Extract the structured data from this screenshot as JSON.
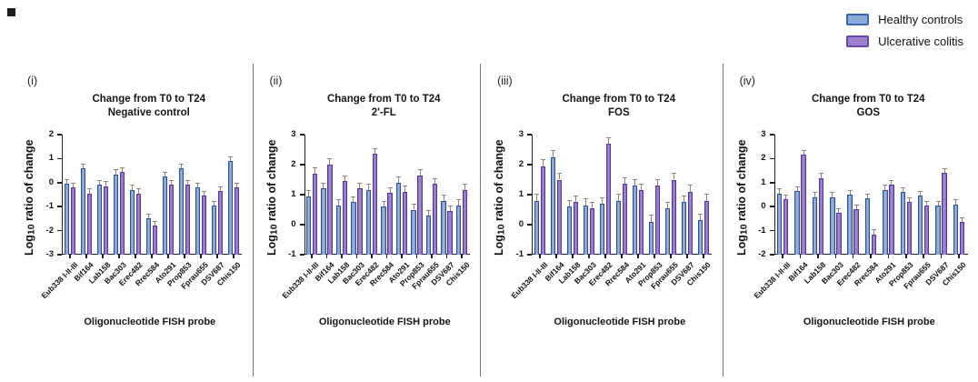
{
  "legend": {
    "items": [
      {
        "label": "Healthy controls",
        "fill": "#8aabd7",
        "border": "#3c66ab"
      },
      {
        "label": "Ulcerative colitis",
        "fill": "#9b82cf",
        "border": "#6a47ad"
      }
    ]
  },
  "colors": {
    "healthy_fill": "#7495c8",
    "healthy_fill_light": "#9db8e0",
    "healthy_border": "#2e4f96",
    "uc_fill": "#8264bb",
    "uc_fill_light": "#a791d4",
    "uc_border": "#53379d",
    "error_bar": "#8f8478",
    "axis": "#1f1f1f",
    "separator": "#787878"
  },
  "shared": {
    "xlabel": "Oligonucleotide FISH probe",
    "ylabel": "Log10 ratio of change",
    "categories": [
      "Eub338 I-II-III",
      "Bif164",
      "Lab158",
      "Bac303",
      "Erec482",
      "Rrec584",
      "Ato291",
      "Prop853",
      "Fprau655",
      "DSV687",
      "Chis150"
    ],
    "series_names": [
      "Healthy controls",
      "Ulcerative colitis"
    ]
  },
  "chart_data": [
    {
      "type": "bar",
      "panel_label": "(i)",
      "title_line1": "Change from T0 to T24",
      "title_line2": "Negative control",
      "ylim": [
        -3,
        2
      ],
      "ytick_step": 1,
      "grid": false,
      "baseline": "ymin",
      "error_bar_estimate": 0.2,
      "series": [
        {
          "name": "Healthy controls",
          "values": [
            -0.05,
            0.6,
            -0.1,
            0.35,
            -0.3,
            -1.5,
            0.25,
            0.6,
            -0.2,
            -0.95,
            0.9
          ]
        },
        {
          "name": "Ulcerative colitis",
          "values": [
            -0.2,
            -0.45,
            -0.15,
            0.45,
            -0.45,
            -1.8,
            -0.1,
            -0.1,
            -0.55,
            -0.35,
            -0.2
          ]
        }
      ]
    },
    {
      "type": "bar",
      "panel_label": "(ii)",
      "title_line1": "Change from T0 to T24",
      "title_line2": "2'-FL",
      "ylim": [
        -1,
        3
      ],
      "ytick_step": 1,
      "grid": false,
      "baseline": "ymin",
      "error_bar_estimate": 0.2,
      "series": [
        {
          "name": "Healthy controls",
          "values": [
            0.95,
            1.2,
            0.65,
            0.75,
            1.15,
            0.6,
            1.4,
            0.5,
            0.3,
            0.8,
            0.65
          ]
        },
        {
          "name": "Ulcerative colitis",
          "values": [
            1.7,
            2.0,
            1.45,
            1.2,
            2.35,
            1.05,
            1.1,
            1.65,
            1.35,
            0.45,
            1.15
          ]
        }
      ]
    },
    {
      "type": "bar",
      "panel_label": "(iii)",
      "title_line1": "Change from T0 to T24",
      "title_line2": "FOS",
      "ylim": [
        -1,
        3
      ],
      "ytick_step": 1,
      "grid": false,
      "baseline": "ymin",
      "error_bar_estimate": 0.22,
      "series": [
        {
          "name": "Healthy controls",
          "values": [
            0.8,
            2.25,
            0.6,
            0.65,
            0.7,
            0.8,
            1.3,
            0.1,
            0.55,
            0.75,
            0.15
          ]
        },
        {
          "name": "Ulcerative colitis",
          "values": [
            1.95,
            1.5,
            0.75,
            0.55,
            2.7,
            1.35,
            1.15,
            1.3,
            1.5,
            1.1,
            0.8
          ]
        }
      ]
    },
    {
      "type": "bar",
      "panel_label": "(iv)",
      "title_line1": "Change from T0 to T24",
      "title_line2": "GOS",
      "ylim": [
        -2,
        3
      ],
      "ytick_step": 1,
      "grid": false,
      "baseline": "ymin",
      "error_bar_estimate": 0.2,
      "series": [
        {
          "name": "Healthy controls",
          "values": [
            0.55,
            0.65,
            0.4,
            0.4,
            0.5,
            0.35,
            0.7,
            0.6,
            0.45,
            0.05,
            0.1
          ]
        },
        {
          "name": "Ulcerative colitis",
          "values": [
            0.3,
            2.15,
            1.2,
            -0.25,
            -0.1,
            -1.15,
            0.9,
            0.2,
            0.05,
            1.4,
            -0.65
          ]
        }
      ]
    }
  ]
}
